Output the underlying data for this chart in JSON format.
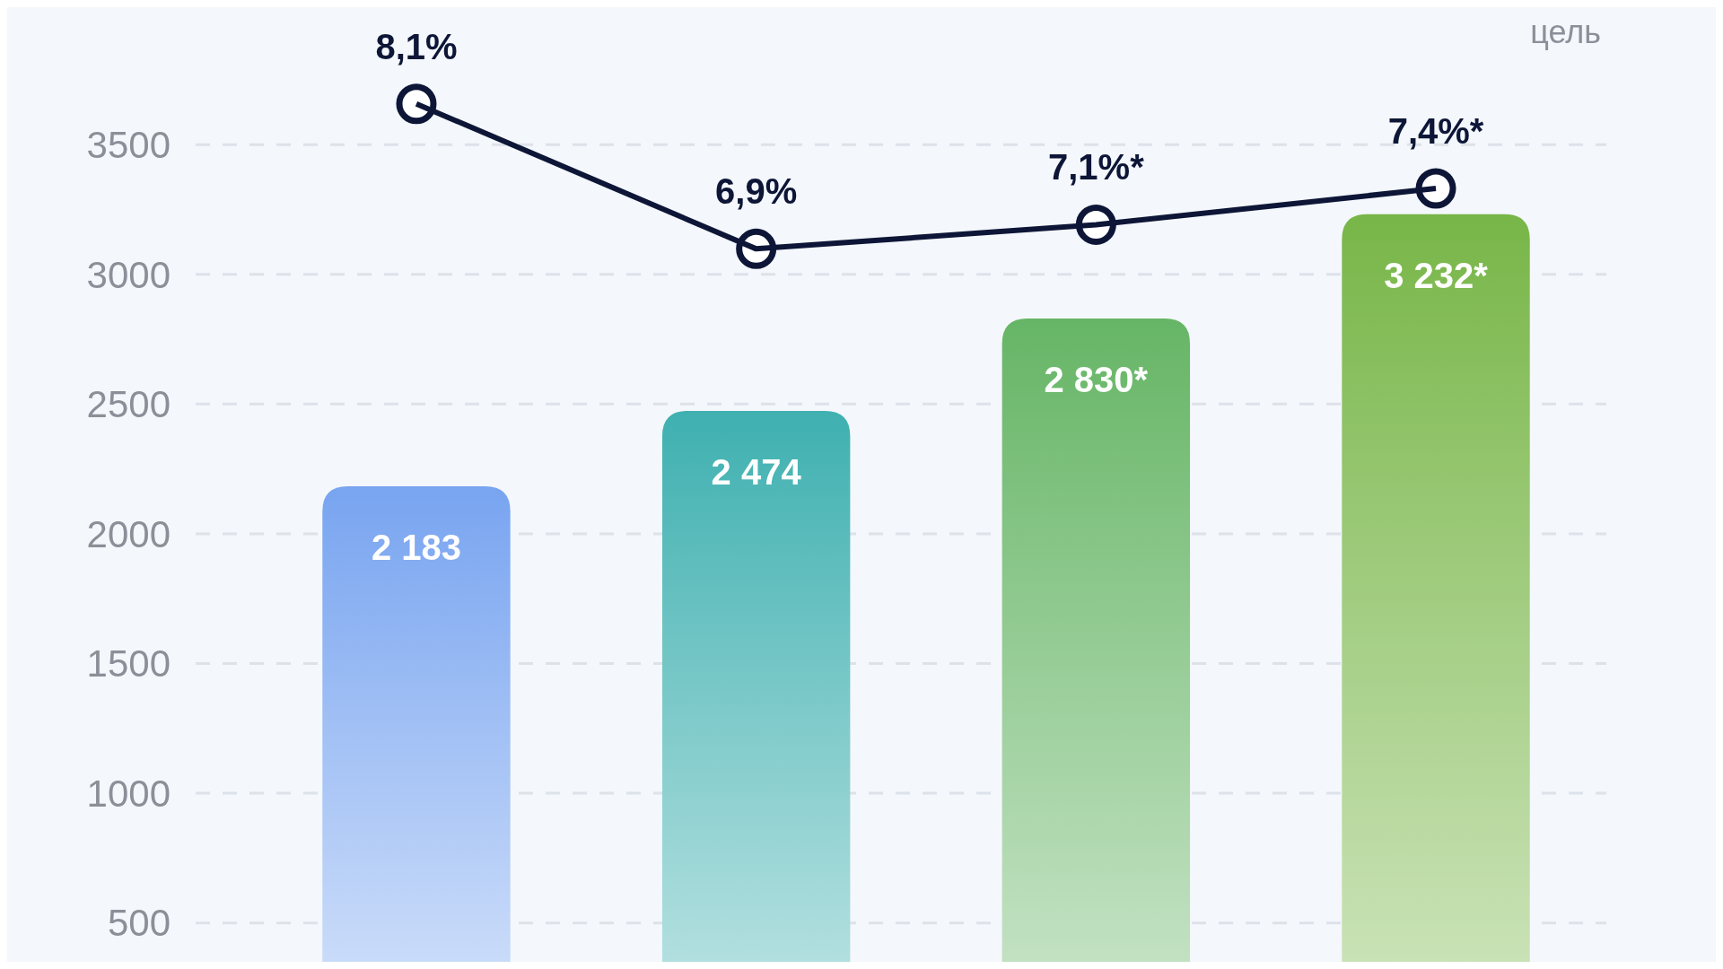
{
  "chart_data": {
    "type": "bar",
    "categories": [
      null,
      null,
      null,
      null
    ],
    "series": [
      {
        "values": [
          2183,
          2474,
          2830,
          3232
        ],
        "colors": [
          "#78a4f0",
          "#3fb0b0",
          "#66b566",
          "#78b648"
        ],
        "value_labels": [
          "2 183",
          "2 474",
          "2 830*",
          "3 232*"
        ]
      },
      {
        "type": "line",
        "axis": "y2",
        "color": "#0d1637",
        "values": [
          8.1,
          6.9,
          7.1,
          7.4
        ],
        "value_labels": [
          "8,1%",
          "6,9%",
          "7,1%*",
          "7,4%*"
        ]
      }
    ],
    "ylim": [
      350,
      4030
    ],
    "yticks": [
      500,
      1000,
      1500,
      2000,
      2500,
      3000,
      3500
    ],
    "y2lim": [
      1.0,
      8.9
    ],
    "grid": "y",
    "marker": "circle",
    "line_style": "solid",
    "tick_labels": "y",
    "annotations": [
      "цель"
    ]
  }
}
